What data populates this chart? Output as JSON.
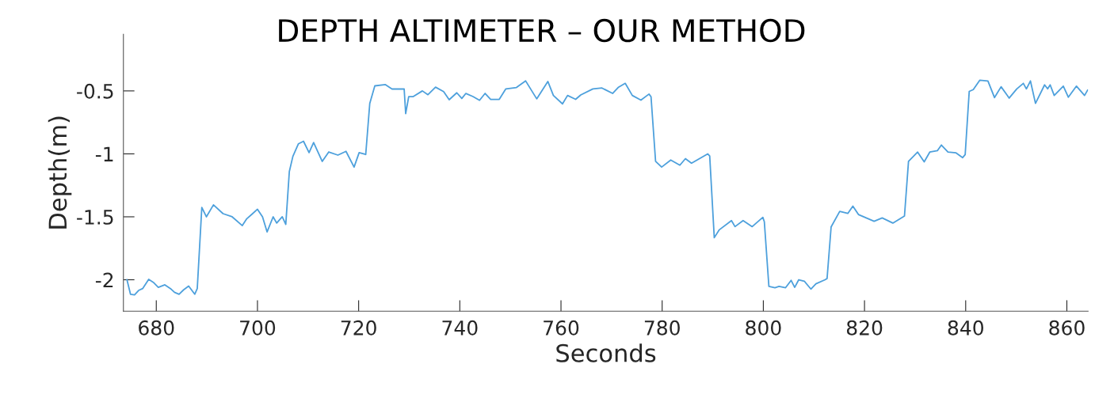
{
  "chart_data": {
    "type": "line",
    "title": "DEPTH ALTIMETER – OUR METHOD",
    "xlabel": "Seconds",
    "ylabel": "Depth(m)",
    "xlim": [
      673.5,
      864.2
    ],
    "ylim": [
      -2.25,
      -0.05
    ],
    "xticks": [
      680,
      700,
      720,
      740,
      760,
      780,
      800,
      820,
      840,
      860
    ],
    "yticks": [
      -2,
      -1.5,
      -1,
      -0.5
    ],
    "grid": false,
    "marker": "none",
    "line_style": "solid",
    "series": [
      {
        "color": "#4da0dc",
        "x": [
          674.2,
          674.9,
          675.7,
          676.5,
          677.3,
          678.5,
          679.4,
          680.4,
          681.7,
          682.8,
          683.6,
          684.5,
          685.4,
          686.4,
          687.6,
          688.1,
          689.0,
          689.9,
          691.3,
          693.2,
          695.0,
          697.0,
          697.9,
          698.9,
          700.0,
          701.0,
          701.9,
          703.1,
          703.8,
          704.9,
          705.6,
          706.3,
          707.0,
          708.1,
          709.1,
          710.2,
          711.1,
          712.8,
          714.1,
          715.9,
          717.5,
          719.1,
          720.1,
          721.4,
          722.2,
          723.2,
          725.3,
          726.6,
          729.0,
          729.3,
          729.9,
          730.8,
          732.6,
          733.7,
          735.2,
          736.8,
          737.9,
          739.4,
          740.4,
          741.2,
          742.6,
          743.9,
          745.0,
          746.1,
          747.8,
          749.1,
          751.2,
          753.0,
          755.2,
          757.4,
          758.5,
          760.3,
          761.3,
          762.9,
          763.9,
          766.3,
          768.1,
          770.2,
          771.3,
          772.7,
          774.1,
          775.8,
          777.4,
          777.8,
          778.7,
          779.9,
          781.7,
          783.5,
          784.6,
          785.8,
          789.0,
          789.4,
          790.3,
          791.3,
          793.7,
          794.4,
          796.0,
          797.8,
          799.9,
          800.2,
          801.1,
          802.3,
          803.1,
          804.4,
          805.5,
          806.2,
          807.0,
          808.1,
          809.4,
          810.4,
          812.2,
          812.6,
          813.4,
          815.1,
          816.7,
          817.7,
          818.8,
          821.9,
          823.5,
          825.6,
          827.9,
          828.7,
          830.5,
          831.8,
          832.9,
          834.4,
          835.2,
          836.5,
          838.1,
          839.4,
          839.9,
          840.7,
          841.5,
          842.8,
          844.4,
          845.7,
          847.0,
          848.6,
          850.1,
          851.4,
          852.0,
          852.8,
          853.8,
          855.6,
          856.2,
          856.7,
          857.5,
          859.3,
          860.3,
          861.9,
          863.5,
          864.1
        ],
        "values": [
          -2.0,
          -2.115,
          -2.12,
          -2.085,
          -2.07,
          -1.997,
          -2.02,
          -2.06,
          -2.04,
          -2.07,
          -2.1,
          -2.115,
          -2.08,
          -2.05,
          -2.115,
          -2.07,
          -1.425,
          -1.5,
          -1.405,
          -1.475,
          -1.5,
          -1.57,
          -1.515,
          -1.48,
          -1.44,
          -1.5,
          -1.62,
          -1.5,
          -1.55,
          -1.5,
          -1.56,
          -1.14,
          -1.02,
          -0.92,
          -0.9,
          -0.99,
          -0.91,
          -1.06,
          -0.985,
          -1.01,
          -0.98,
          -1.105,
          -0.99,
          -1.005,
          -0.6,
          -0.46,
          -0.45,
          -0.485,
          -0.485,
          -0.68,
          -0.545,
          -0.545,
          -0.5,
          -0.53,
          -0.47,
          -0.505,
          -0.57,
          -0.515,
          -0.56,
          -0.52,
          -0.545,
          -0.575,
          -0.52,
          -0.567,
          -0.567,
          -0.484,
          -0.473,
          -0.42,
          -0.563,
          -0.425,
          -0.536,
          -0.603,
          -0.536,
          -0.567,
          -0.532,
          -0.484,
          -0.477,
          -0.52,
          -0.473,
          -0.44,
          -0.536,
          -0.573,
          -0.525,
          -0.546,
          -1.059,
          -1.105,
          -1.049,
          -1.09,
          -1.038,
          -1.074,
          -1.0,
          -1.017,
          -1.666,
          -1.603,
          -1.53,
          -1.578,
          -1.53,
          -1.578,
          -1.504,
          -1.54,
          -2.053,
          -2.063,
          -2.053,
          -2.063,
          -2.005,
          -2.06,
          -2.0,
          -2.011,
          -2.074,
          -2.032,
          -2.0,
          -1.99,
          -1.58,
          -1.457,
          -1.473,
          -1.415,
          -1.482,
          -1.536,
          -1.509,
          -1.55,
          -1.494,
          -1.059,
          -0.986,
          -1.063,
          -0.986,
          -0.975,
          -0.93,
          -0.986,
          -0.992,
          -1.03,
          -1.006,
          -0.504,
          -0.49,
          -0.415,
          -0.421,
          -0.553,
          -0.467,
          -0.557,
          -0.484,
          -0.44,
          -0.484,
          -0.421,
          -0.599,
          -0.452,
          -0.484,
          -0.452,
          -0.536,
          -0.462,
          -0.55,
          -0.462,
          -0.536,
          -0.494
        ]
      }
    ]
  }
}
